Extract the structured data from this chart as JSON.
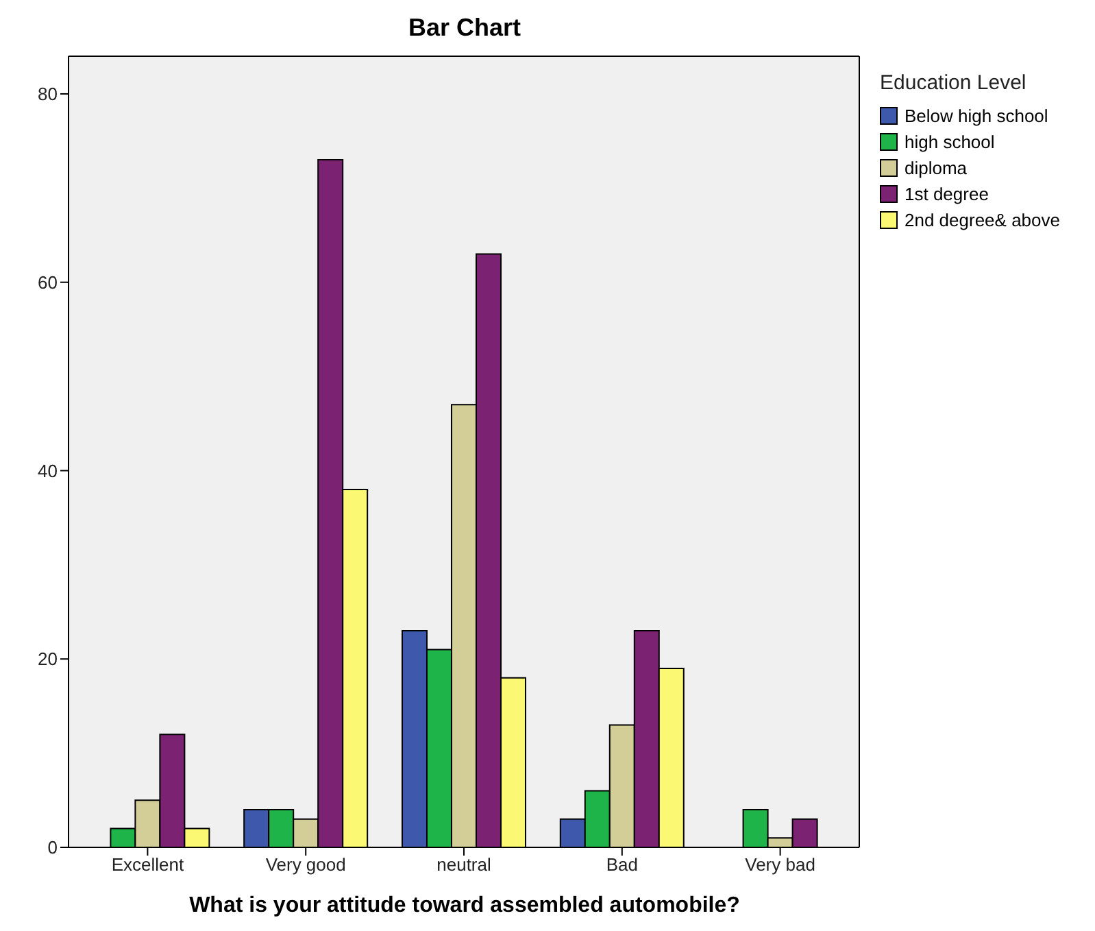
{
  "chart_data": {
    "type": "bar",
    "title": "Bar Chart",
    "xlabel": "What is your attitude toward assembled automobile?",
    "legend_title": "Education Level",
    "categories": [
      "Excellent",
      "Very good",
      "neutral",
      "Bad",
      "Very bad"
    ],
    "series": [
      {
        "name": "Below high school",
        "color": "#3e58ac",
        "values": [
          0,
          4,
          23,
          3,
          0
        ]
      },
      {
        "name": "high school",
        "color": "#1fb44a",
        "values": [
          2,
          4,
          21,
          6,
          4
        ]
      },
      {
        "name": "diploma",
        "color": "#d3ce97",
        "values": [
          5,
          3,
          47,
          13,
          1
        ]
      },
      {
        "name": "1st degree",
        "color": "#7b2372",
        "values": [
          12,
          73,
          63,
          23,
          3
        ]
      },
      {
        "name": "2nd degree& above",
        "color": "#fbf873",
        "values": [
          2,
          38,
          18,
          19,
          0
        ]
      }
    ],
    "ylim": [
      0,
      84
    ],
    "yticks": [
      0,
      20,
      40,
      60,
      80
    ],
    "grid": false,
    "legend": "top right"
  }
}
